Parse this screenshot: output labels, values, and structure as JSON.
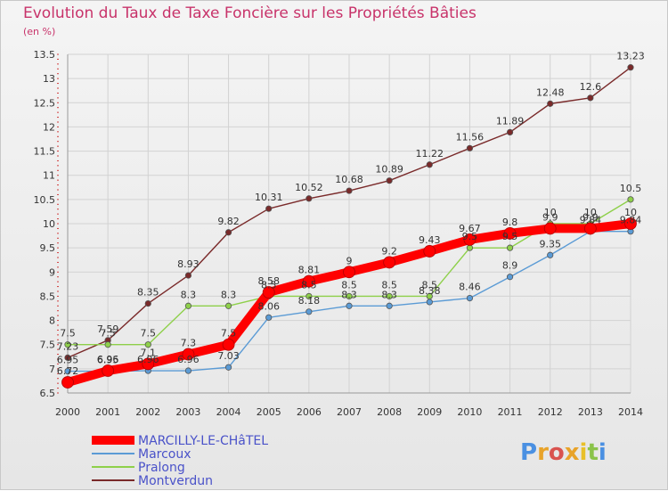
{
  "chart_data": {
    "type": "line",
    "title": "Evolution du Taux de Taxe Foncière sur les Propriétés Bâties",
    "unit": "(en %)",
    "xlabel": "",
    "ylabel": "",
    "x": [
      "2000",
      "2001",
      "2002",
      "2003",
      "2004",
      "2005",
      "2006",
      "2007",
      "2008",
      "2009",
      "2010",
      "2011",
      "2012",
      "2013",
      "2014"
    ],
    "ylim": [
      6.5,
      13.5
    ],
    "yticks": [
      "6.5",
      "7",
      "7.5",
      "8",
      "8.5",
      "9",
      "9.5",
      "10",
      "10.5",
      "11",
      "11.5",
      "12",
      "12.5",
      "13",
      "13.5"
    ],
    "series": [
      {
        "name": "MARCILLY-LE-CHâTEL",
        "color": "#ff0000",
        "values": [
          6.72,
          6.96,
          7.1,
          7.3,
          7.5,
          8.58,
          8.81,
          9.0,
          9.2,
          9.43,
          9.67,
          9.8,
          9.9,
          9.9,
          10.0
        ],
        "labels": [
          "6.72",
          "6.96",
          "7.1",
          "7.3",
          "7.5",
          "8.58",
          "8.81",
          "9",
          "9.2",
          "9.43",
          "9.67",
          "9.8",
          "9.9",
          "9.9",
          "10"
        ]
      },
      {
        "name": "Marcoux",
        "color": "#5b9bd5",
        "values": [
          6.95,
          6.95,
          6.96,
          6.96,
          7.03,
          8.06,
          8.18,
          8.3,
          8.3,
          8.38,
          8.46,
          8.9,
          9.35,
          9.84,
          9.84
        ],
        "labels": [
          "6.95",
          "6.95",
          "6.96",
          "6.96",
          "7.03",
          "8.06",
          "8.18",
          "8.3",
          "8.3",
          "8.38",
          "8.46",
          "8.9",
          "9.35",
          "9.84",
          "9.84"
        ]
      },
      {
        "name": "Pralong",
        "color": "#8ed04a",
        "values": [
          7.5,
          7.5,
          7.5,
          8.3,
          8.3,
          8.5,
          8.5,
          8.5,
          8.5,
          8.5,
          9.5,
          9.5,
          10.0,
          10.0,
          10.5
        ],
        "labels": [
          "7.5",
          "7.5",
          "7.5",
          "8.3",
          "8.3",
          "8.5",
          "8.5",
          "8.5",
          "8.5",
          "8.5",
          "9.5",
          "9.5",
          "10",
          "10",
          "10.5"
        ]
      },
      {
        "name": "Montverdun",
        "color": "#7a2a2a",
        "values": [
          7.23,
          7.59,
          8.35,
          8.93,
          9.82,
          10.31,
          10.52,
          10.68,
          10.89,
          11.22,
          11.56,
          11.89,
          12.48,
          12.6,
          13.23
        ],
        "labels": [
          "7.23",
          "7.59",
          "8.35",
          "8.93",
          "9.82",
          "10.31",
          "10.52",
          "10.68",
          "10.89",
          "11.22",
          "11.56",
          "11.89",
          "12.48",
          "12.6",
          "13.23"
        ]
      }
    ],
    "legend": "bottom-left"
  },
  "logo": {
    "text": "Proxiti"
  }
}
